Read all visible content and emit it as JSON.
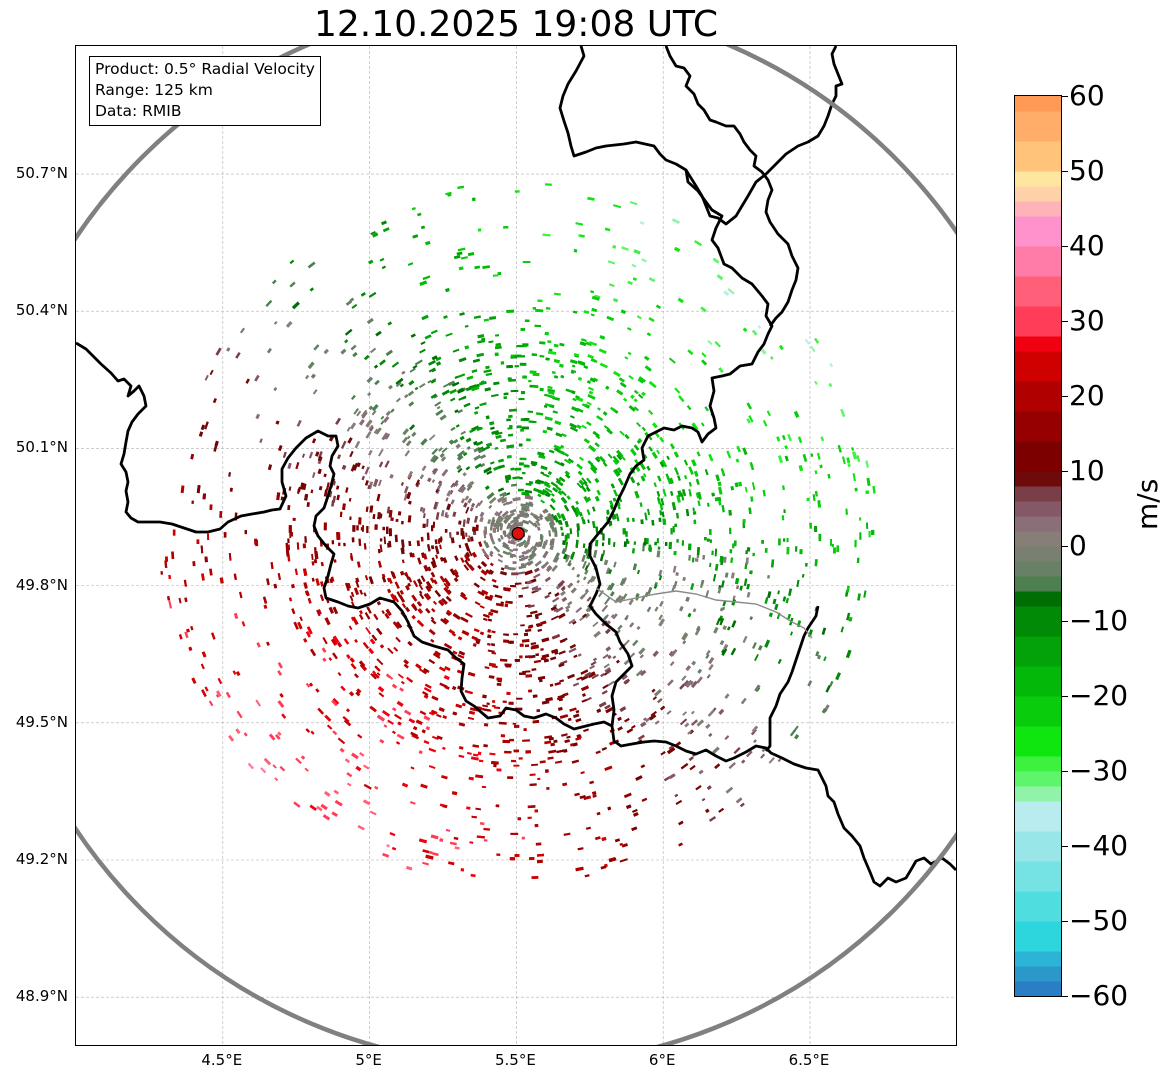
{
  "title": "12.10.2025 19:08 UTC",
  "info": {
    "product": "Product: 0.5° Radial Velocity",
    "range": "Range: 125 km",
    "data": "Data: RMIB"
  },
  "map": {
    "extent": {
      "lon_min": 4.0,
      "lon_max": 7.0,
      "lat_min": 48.8,
      "lat_max": 50.98
    },
    "radar_site": {
      "lon": 5.506,
      "lat": 49.914
    },
    "range_km": 125,
    "lat_ticks": [
      {
        "value": 50.7,
        "label": "50.7°N"
      },
      {
        "value": 50.4,
        "label": "50.4°N"
      },
      {
        "value": 50.1,
        "label": "50.1°N"
      },
      {
        "value": 49.8,
        "label": "49.8°N"
      },
      {
        "value": 49.5,
        "label": "49.5°N"
      },
      {
        "value": 49.2,
        "label": "49.2°N"
      },
      {
        "value": 48.9,
        "label": "48.9°N"
      }
    ],
    "lon_ticks": [
      {
        "value": 4.5,
        "label": "4.5°E"
      },
      {
        "value": 5.0,
        "label": "5°E"
      },
      {
        "value": 5.5,
        "label": "5.5°E"
      },
      {
        "value": 6.0,
        "label": "6°E"
      },
      {
        "value": 6.5,
        "label": "6.5°E"
      }
    ],
    "colors": {
      "grid": "#b0b0b0",
      "border": "#000000",
      "range_ring": "#808080",
      "site": "#e01010"
    }
  },
  "colorbar": {
    "unit": "m/s",
    "min": -60,
    "max": 60,
    "ticks": [
      {
        "value": 60,
        "label": "60"
      },
      {
        "value": 50,
        "label": "50"
      },
      {
        "value": 40,
        "label": "40"
      },
      {
        "value": 30,
        "label": "30"
      },
      {
        "value": 20,
        "label": "20"
      },
      {
        "value": 10,
        "label": "10"
      },
      {
        "value": 0,
        "label": "0"
      },
      {
        "value": -10,
        "label": "−10"
      },
      {
        "value": -20,
        "label": "−20"
      },
      {
        "value": -30,
        "label": "−30"
      },
      {
        "value": -40,
        "label": "−40"
      },
      {
        "value": -50,
        "label": "−50"
      },
      {
        "value": -60,
        "label": "−60"
      }
    ],
    "segments": [
      {
        "from": -60,
        "to": -58,
        "color": "#2a7fc4"
      },
      {
        "from": -58,
        "to": -56,
        "color": "#2a98c9"
      },
      {
        "from": -56,
        "to": -54,
        "color": "#2bb4d6"
      },
      {
        "from": -54,
        "to": -50,
        "color": "#2dd6dc"
      },
      {
        "from": -50,
        "to": -46,
        "color": "#4fdde0"
      },
      {
        "from": -46,
        "to": -42,
        "color": "#75e2e4"
      },
      {
        "from": -42,
        "to": -38,
        "color": "#98e6e8"
      },
      {
        "from": -38,
        "to": -34,
        "color": "#b8ecee"
      },
      {
        "from": -34,
        "to": -32,
        "color": "#8ff3a8"
      },
      {
        "from": -32,
        "to": -30,
        "color": "#5ff56a"
      },
      {
        "from": -30,
        "to": -28,
        "color": "#3df23f"
      },
      {
        "from": -28,
        "to": -24,
        "color": "#0fe50f"
      },
      {
        "from": -24,
        "to": -20,
        "color": "#09cd0c"
      },
      {
        "from": -20,
        "to": -16,
        "color": "#04b80a"
      },
      {
        "from": -16,
        "to": -12,
        "color": "#02a208"
      },
      {
        "from": -12,
        "to": -8,
        "color": "#018a06"
      },
      {
        "from": -8,
        "to": -6,
        "color": "#016e05"
      },
      {
        "from": -6,
        "to": -4,
        "color": "#4d7f50"
      },
      {
        "from": -4,
        "to": -2,
        "color": "#678066"
      },
      {
        "from": -2,
        "to": 0,
        "color": "#7a8071"
      },
      {
        "from": 0,
        "to": 2,
        "color": "#877e78"
      },
      {
        "from": 2,
        "to": 4,
        "color": "#8a6f79"
      },
      {
        "from": 4,
        "to": 6,
        "color": "#845866"
      },
      {
        "from": 6,
        "to": 8,
        "color": "#7a3e48"
      },
      {
        "from": 8,
        "to": 10,
        "color": "#6e0a0a"
      },
      {
        "from": 10,
        "to": 14,
        "color": "#7c0000"
      },
      {
        "from": 14,
        "to": 18,
        "color": "#960000"
      },
      {
        "from": 18,
        "to": 22,
        "color": "#b00000"
      },
      {
        "from": 22,
        "to": 26,
        "color": "#cf0000"
      },
      {
        "from": 26,
        "to": 28,
        "color": "#f00010"
      },
      {
        "from": 28,
        "to": 32,
        "color": "#ff3d58"
      },
      {
        "from": 32,
        "to": 36,
        "color": "#ff5f78"
      },
      {
        "from": 36,
        "to": 40,
        "color": "#ff7ba8"
      },
      {
        "from": 40,
        "to": 44,
        "color": "#ff91cc"
      },
      {
        "from": 44,
        "to": 46,
        "color": "#ffb3b8"
      },
      {
        "from": 46,
        "to": 48,
        "color": "#ffd1a8"
      },
      {
        "from": 48,
        "to": 50,
        "color": "#ffe6a0"
      },
      {
        "from": 50,
        "to": 54,
        "color": "#ffc37a"
      },
      {
        "from": 54,
        "to": 58,
        "color": "#ffad68"
      },
      {
        "from": 58,
        "to": 60,
        "color": "#ff9a56"
      }
    ]
  }
}
